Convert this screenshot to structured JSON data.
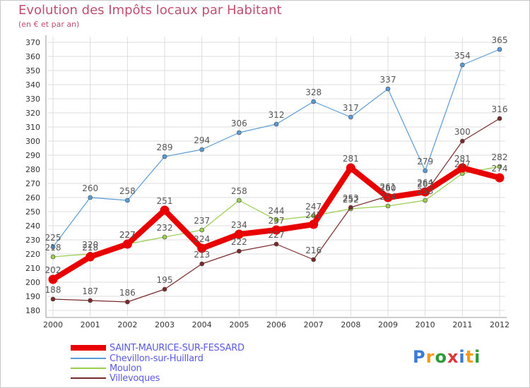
{
  "title": "Evolution des Impôts locaux par Habitant",
  "subtitle": "(en € et par an)",
  "logo": {
    "text": "Proxiti",
    "colors": [
      "#3a7ad8",
      "#f29c1c",
      "#2e9a3a",
      "#d83a3a",
      "#3a7ad8",
      "#f29c1c",
      "#2e9a3a"
    ]
  },
  "chart_data": {
    "type": "line",
    "categories": [
      "2000",
      "2001",
      "2002",
      "2003",
      "2004",
      "2005",
      "2006",
      "2007",
      "2008",
      "2009",
      "2010",
      "2011",
      "2012"
    ],
    "ylim": [
      180,
      370
    ],
    "yticks": [
      180,
      190,
      200,
      210,
      220,
      230,
      240,
      250,
      260,
      270,
      280,
      290,
      300,
      310,
      320,
      330,
      340,
      350,
      360,
      370
    ],
    "grid": true,
    "series": [
      {
        "name": "SAINT-MAURICE-SUR-FESSARD",
        "color": "#e80000",
        "values": [
          202,
          218,
          227,
          251,
          224,
          234,
          237,
          241,
          281,
          260,
          264,
          281,
          274
        ]
      },
      {
        "name": "Chevillon-sur-Huillard",
        "color": "#5b9bd5",
        "values": [
          225,
          260,
          258,
          289,
          294,
          306,
          312,
          328,
          317,
          337,
          279,
          354,
          365
        ]
      },
      {
        "name": "Moulon",
        "color": "#9acd50",
        "values": [
          218,
          220,
          227,
          232,
          237,
          258,
          244,
          247,
          252,
          254,
          258,
          277,
          282
        ]
      },
      {
        "name": "Villevoques",
        "color": "#7a2a2a",
        "values": [
          188,
          187,
          186,
          195,
          213,
          222,
          227,
          216,
          253,
          261,
          263,
          300,
          316
        ]
      }
    ]
  }
}
